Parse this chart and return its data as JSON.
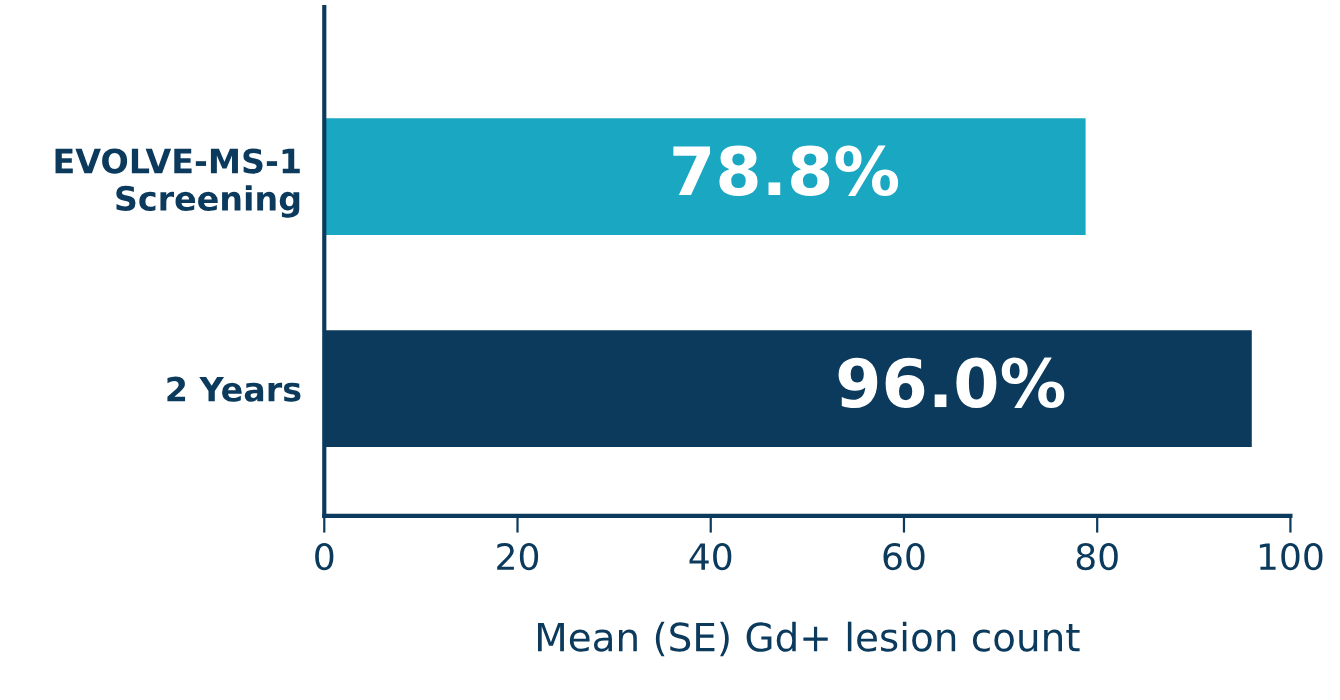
{
  "chart_data": {
    "type": "bar",
    "orientation": "horizontal",
    "xlabel": "Mean (SE) Gd+ lesion count",
    "categories": [
      "EVOLVE-MS-1\nScreening",
      "2 Years"
    ],
    "values": [
      78.8,
      96.0
    ],
    "colors": [
      "#1aa7c2",
      "#0b3a5c"
    ],
    "value_labels": [
      "78.8%",
      "96.0%"
    ],
    "xlim": [
      0,
      100
    ],
    "xticks": [
      0,
      20,
      40,
      60,
      80,
      100
    ],
    "grid": false,
    "legend": false
  }
}
